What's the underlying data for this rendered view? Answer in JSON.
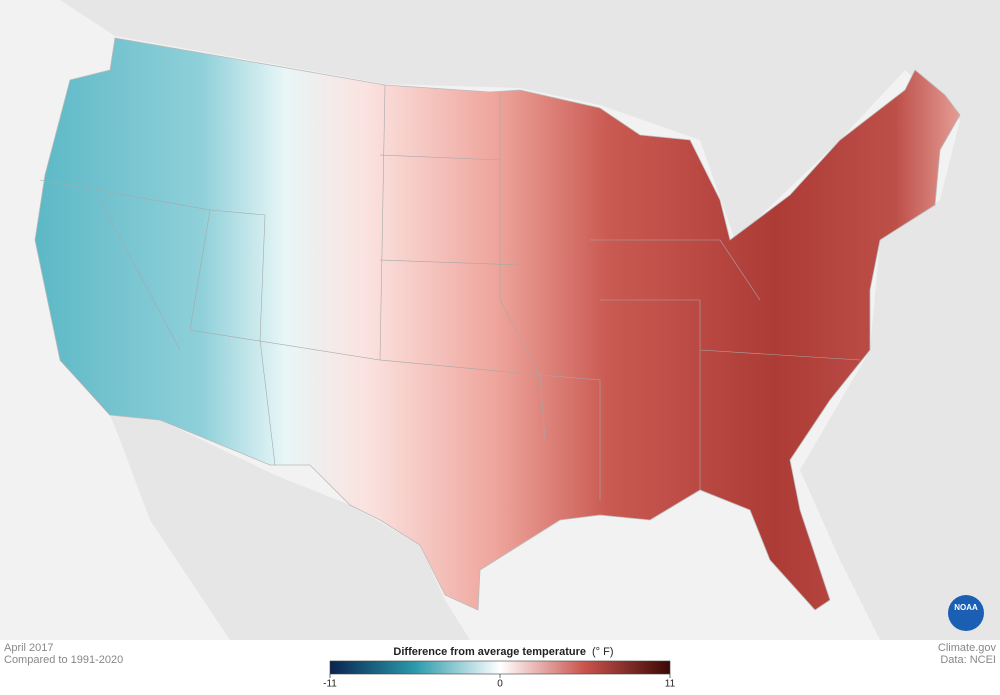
{
  "header": {
    "date": "April 2017",
    "comparison": "Compared to 1991-2020"
  },
  "legend": {
    "title": "Difference from average temperature",
    "unit": "(° F)",
    "min": -11,
    "max": 11,
    "ticks": [
      -11,
      0,
      11
    ]
  },
  "credits": {
    "site": "Climate.gov",
    "source": "Data: NCEI",
    "logo": "NOAA"
  }
}
